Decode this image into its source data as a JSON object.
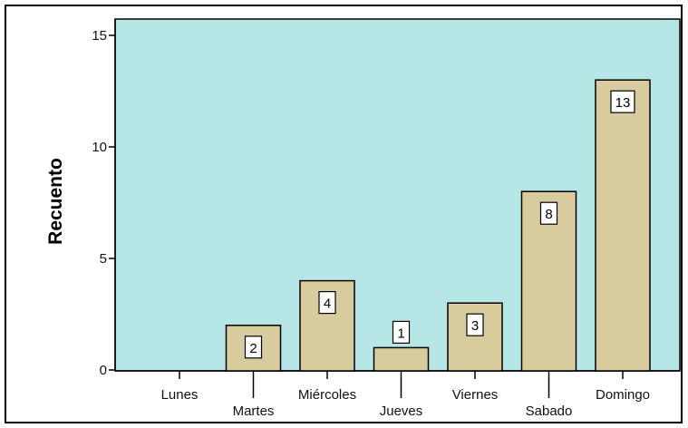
{
  "chart_data": {
    "type": "bar",
    "title": "",
    "xlabel": "",
    "ylabel": "Recuento",
    "categories": [
      "Lunes",
      "Martes",
      "Miércoles",
      "Jueves",
      "Viernes",
      "Sabado",
      "Domingo"
    ],
    "values": [
      0,
      2,
      4,
      1,
      3,
      8,
      13
    ],
    "ylim": [
      0,
      15
    ],
    "yticks": [
      0,
      5,
      10,
      15
    ],
    "data_labels": [
      "",
      "2",
      "4",
      "1",
      "3",
      "8",
      "13"
    ],
    "grid": false,
    "legend": "none",
    "colors": {
      "plot_background": "#b6e6e6",
      "bar_fill": "#d8cc9e",
      "bar_stroke": "#000000",
      "label_box": "#ffffff"
    }
  }
}
